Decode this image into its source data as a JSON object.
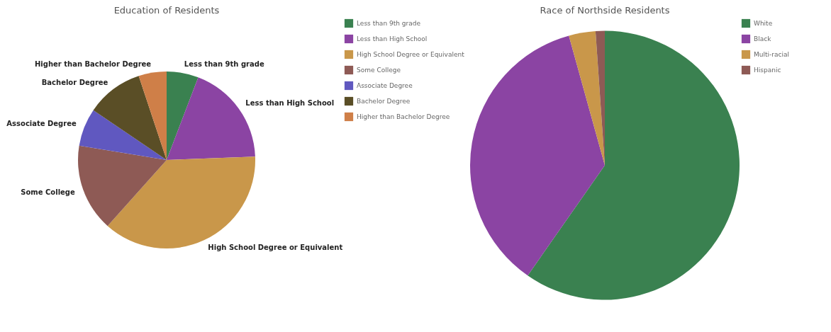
{
  "chart_data": [
    {
      "type": "pie",
      "title": "Education of Residents",
      "categories": [
        "Less than 9th grade",
        "Less than High School",
        "High School Degree or Equivalent",
        "Some College",
        "Associate Degree",
        "Bachelor Degree",
        "Higher than Bachelor Degree"
      ],
      "values": [
        5.8,
        18.6,
        37.2,
        16,
        6.9,
        10.4,
        5.1
      ],
      "colors": [
        "#3a8150",
        "#8b44a3",
        "#c9974a",
        "#8e5a55",
        "#6058c0",
        "#5a4e26",
        "#cf7f48"
      ],
      "legend": "right"
    },
    {
      "type": "pie",
      "title": "Race of Northside Residents",
      "categories": [
        "White",
        "Black",
        "Multi-racial",
        "Hispanic"
      ],
      "values": [
        59.7,
        36,
        3.2,
        1.1
      ],
      "colors": [
        "#3a8150",
        "#8b44a3",
        "#c9974a",
        "#8e5a55"
      ],
      "legend": "right"
    }
  ]
}
